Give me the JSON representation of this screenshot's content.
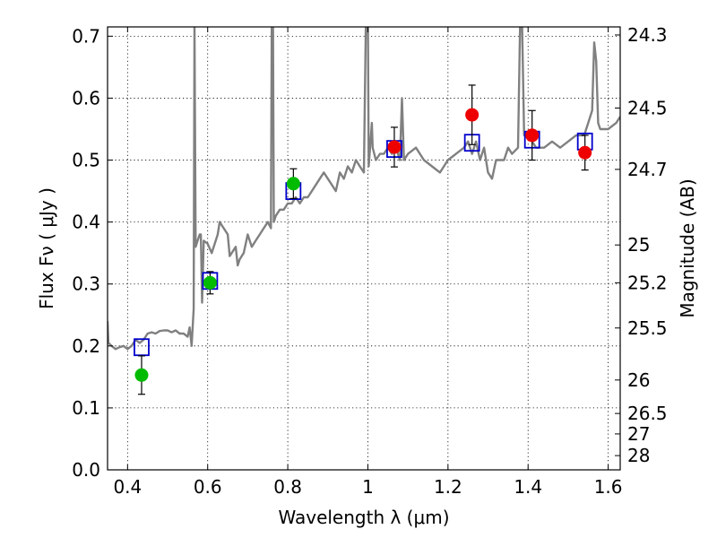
{
  "chart_data": {
    "type": "scatter",
    "title": "",
    "xlabel": "Wavelength  λ (μm)",
    "ylabel_left": "Flux  Fν  ( μJy )",
    "ylabel_right": "Magnitude (AB)",
    "xlim": [
      0.35,
      1.63
    ],
    "ylim": [
      0.0,
      0.715
    ],
    "grid": true,
    "x_ticks": [
      0.4,
      0.6,
      0.8,
      1.0,
      1.2,
      1.4,
      1.6
    ],
    "x_tick_labels": [
      "0.4",
      "0.6",
      "0.8",
      "1",
      "1.2",
      "1.4",
      "1.6"
    ],
    "y_ticks": [
      0.0,
      0.1,
      0.2,
      0.3,
      0.4,
      0.5,
      0.6,
      0.7
    ],
    "y_tick_labels": [
      "0.0",
      "0.1",
      "0.2",
      "0.3",
      "0.4",
      "0.5",
      "0.6",
      "0.7"
    ],
    "right_axis_ticks": [
      {
        "flux": 0.702,
        "label": "24.3"
      },
      {
        "flux": 0.584,
        "label": "24.5"
      },
      {
        "flux": 0.485,
        "label": "24.7"
      },
      {
        "flux": 0.363,
        "label": "25"
      },
      {
        "flux": 0.302,
        "label": "25.2"
      },
      {
        "flux": 0.229,
        "label": "25.5"
      },
      {
        "flux": 0.145,
        "label": "26"
      },
      {
        "flux": 0.091,
        "label": "26.5"
      },
      {
        "flux": 0.058,
        "label": "27"
      },
      {
        "flux": 0.023,
        "label": "28"
      }
    ],
    "series": [
      {
        "kind": "model-spectrum",
        "color": "#808080",
        "points": [
          [
            0.35,
            0.24
          ],
          [
            0.352,
            0.205
          ],
          [
            0.36,
            0.2
          ],
          [
            0.37,
            0.195
          ],
          [
            0.38,
            0.198
          ],
          [
            0.39,
            0.2
          ],
          [
            0.4,
            0.195
          ],
          [
            0.41,
            0.2
          ],
          [
            0.42,
            0.21
          ],
          [
            0.43,
            0.205
          ],
          [
            0.44,
            0.21
          ],
          [
            0.45,
            0.22
          ],
          [
            0.46,
            0.222
          ],
          [
            0.47,
            0.22
          ],
          [
            0.48,
            0.224
          ],
          [
            0.49,
            0.225
          ],
          [
            0.5,
            0.225
          ],
          [
            0.51,
            0.222
          ],
          [
            0.52,
            0.225
          ],
          [
            0.53,
            0.22
          ],
          [
            0.54,
            0.22
          ],
          [
            0.55,
            0.215
          ],
          [
            0.555,
            0.23
          ],
          [
            0.56,
            0.2
          ],
          [
            0.565,
            0.26
          ],
          [
            0.567,
            0.72
          ],
          [
            0.57,
            0.36
          ],
          [
            0.575,
            0.37
          ],
          [
            0.58,
            0.38
          ],
          [
            0.583,
            0.38
          ],
          [
            0.586,
            0.27
          ],
          [
            0.59,
            0.37
          ],
          [
            0.6,
            0.365
          ],
          [
            0.61,
            0.35
          ],
          [
            0.62,
            0.37
          ],
          [
            0.625,
            0.38
          ],
          [
            0.63,
            0.4
          ],
          [
            0.64,
            0.39
          ],
          [
            0.65,
            0.38
          ],
          [
            0.655,
            0.345
          ],
          [
            0.66,
            0.35
          ],
          [
            0.67,
            0.36
          ],
          [
            0.675,
            0.33
          ],
          [
            0.68,
            0.34
          ],
          [
            0.69,
            0.35
          ],
          [
            0.7,
            0.38
          ],
          [
            0.71,
            0.36
          ],
          [
            0.72,
            0.37
          ],
          [
            0.73,
            0.38
          ],
          [
            0.74,
            0.39
          ],
          [
            0.75,
            0.4
          ],
          [
            0.758,
            0.39
          ],
          [
            0.76,
            0.72
          ],
          [
            0.763,
            0.72
          ],
          [
            0.765,
            0.4
          ],
          [
            0.77,
            0.41
          ],
          [
            0.78,
            0.42
          ],
          [
            0.79,
            0.42
          ],
          [
            0.8,
            0.43
          ],
          [
            0.81,
            0.43
          ],
          [
            0.82,
            0.44
          ],
          [
            0.83,
            0.43
          ],
          [
            0.84,
            0.44
          ],
          [
            0.85,
            0.44
          ],
          [
            0.86,
            0.45
          ],
          [
            0.87,
            0.46
          ],
          [
            0.88,
            0.47
          ],
          [
            0.89,
            0.48
          ],
          [
            0.9,
            0.47
          ],
          [
            0.91,
            0.46
          ],
          [
            0.92,
            0.45
          ],
          [
            0.93,
            0.48
          ],
          [
            0.94,
            0.47
          ],
          [
            0.95,
            0.49
          ],
          [
            0.96,
            0.48
          ],
          [
            0.97,
            0.5
          ],
          [
            0.98,
            0.49
          ],
          [
            0.99,
            0.48
          ],
          [
            0.995,
            0.72
          ],
          [
            1.0,
            0.72
          ],
          [
            1.002,
            0.49
          ],
          [
            1.01,
            0.56
          ],
          [
            1.012,
            0.52
          ],
          [
            1.02,
            0.5
          ],
          [
            1.03,
            0.51
          ],
          [
            1.04,
            0.51
          ],
          [
            1.05,
            0.52
          ],
          [
            1.06,
            0.51
          ],
          [
            1.07,
            0.52
          ],
          [
            1.08,
            0.5
          ],
          [
            1.085,
            0.6
          ],
          [
            1.09,
            0.5
          ],
          [
            1.1,
            0.51
          ],
          [
            1.12,
            0.52
          ],
          [
            1.14,
            0.5
          ],
          [
            1.16,
            0.49
          ],
          [
            1.18,
            0.48
          ],
          [
            1.2,
            0.5
          ],
          [
            1.22,
            0.51
          ],
          [
            1.24,
            0.52
          ],
          [
            1.25,
            0.53
          ],
          [
            1.26,
            0.51
          ],
          [
            1.27,
            0.53
          ],
          [
            1.28,
            0.5
          ],
          [
            1.29,
            0.52
          ],
          [
            1.3,
            0.48
          ],
          [
            1.31,
            0.47
          ],
          [
            1.32,
            0.5
          ],
          [
            1.34,
            0.5
          ],
          [
            1.35,
            0.52
          ],
          [
            1.36,
            0.51
          ],
          [
            1.375,
            0.52
          ],
          [
            1.38,
            0.72
          ],
          [
            1.385,
            0.72
          ],
          [
            1.39,
            0.54
          ],
          [
            1.4,
            0.54
          ],
          [
            1.42,
            0.52
          ],
          [
            1.44,
            0.52
          ],
          [
            1.46,
            0.53
          ],
          [
            1.48,
            0.52
          ],
          [
            1.5,
            0.53
          ],
          [
            1.52,
            0.54
          ],
          [
            1.54,
            0.54
          ],
          [
            1.55,
            0.56
          ],
          [
            1.56,
            0.58
          ],
          [
            1.565,
            0.69
          ],
          [
            1.57,
            0.66
          ],
          [
            1.575,
            0.56
          ],
          [
            1.58,
            0.55
          ],
          [
            1.6,
            0.55
          ],
          [
            1.62,
            0.56
          ],
          [
            1.63,
            0.57
          ]
        ]
      },
      {
        "kind": "model-photometry",
        "marker": "open-square",
        "color": "#0000cc",
        "x": [
          0.435,
          0.606,
          0.814,
          1.066,
          1.26,
          1.41,
          1.542
        ],
        "y": [
          0.198,
          0.305,
          0.45,
          0.518,
          0.528,
          0.533,
          0.53
        ]
      },
      {
        "kind": "observed-optical",
        "marker": "filled-circle",
        "color": "#00bb00",
        "x": [
          0.435,
          0.606,
          0.814
        ],
        "y": [
          0.153,
          0.302,
          0.462
        ],
        "yerr": [
          0.031,
          0.018,
          0.024
        ]
      },
      {
        "kind": "observed-nir",
        "marker": "filled-circle",
        "color": "#ee0000",
        "x": [
          1.066,
          1.26,
          1.41,
          1.542
        ],
        "y": [
          0.521,
          0.573,
          0.54,
          0.512
        ],
        "yerr": [
          0.032,
          0.048,
          0.04,
          0.028
        ]
      }
    ]
  }
}
